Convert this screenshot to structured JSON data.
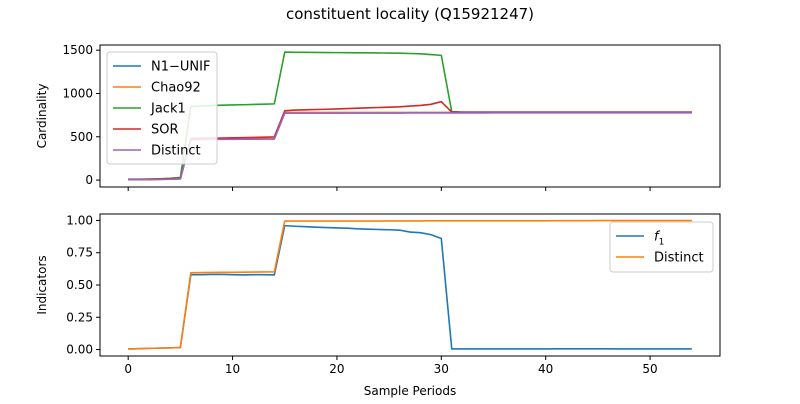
{
  "figure": {
    "title": "constituent locality (Q15921247)"
  },
  "chart_data": [
    {
      "type": "line",
      "xlabel": "",
      "ylabel": "Cardinality",
      "xlim": [
        -2.7,
        56.7
      ],
      "ylim": [
        -80,
        1560
      ],
      "xticks": [
        0,
        10,
        20,
        30,
        40,
        50
      ],
      "xticks_labeled": false,
      "yticks": [
        0,
        500,
        1000,
        1500
      ],
      "grid": false,
      "legend": "upper left",
      "x": [
        0,
        1,
        2,
        3,
        4,
        5,
        6,
        7,
        8,
        9,
        10,
        11,
        12,
        13,
        14,
        15,
        16,
        17,
        18,
        19,
        20,
        21,
        22,
        23,
        24,
        25,
        26,
        27,
        28,
        29,
        30,
        31,
        32,
        33,
        34,
        35,
        36,
        37,
        38,
        39,
        40,
        41,
        42,
        43,
        44,
        45,
        46,
        47,
        48,
        49,
        50,
        51,
        52,
        53,
        54
      ],
      "series": [
        {
          "name": "N1−UNIF",
          "color": "#1f77b4",
          "values": [
            5,
            5,
            6,
            8,
            10,
            15,
            470,
            470,
            472,
            472,
            473,
            474,
            474,
            475,
            475,
            775,
            775,
            776,
            776,
            776,
            776,
            777,
            777,
            777,
            777,
            777,
            777,
            778,
            778,
            778,
            778,
            778,
            778,
            778,
            778,
            779,
            779,
            779,
            779,
            779,
            779,
            779,
            779,
            779,
            779,
            779,
            779,
            779,
            779,
            779,
            779,
            779,
            779,
            779,
            779
          ]
        },
        {
          "name": "Chao92",
          "color": "#ff7f0e",
          "values": [
            5,
            5,
            6,
            8,
            10,
            15,
            475,
            475,
            477,
            477,
            478,
            478,
            478,
            479,
            479,
            780,
            780,
            781,
            781,
            781,
            781,
            781,
            781,
            781,
            781,
            781,
            781,
            781,
            781,
            781,
            781,
            781,
            781,
            781,
            781,
            781,
            781,
            781,
            781,
            781,
            781,
            781,
            781,
            781,
            781,
            781,
            781,
            781,
            781,
            781,
            781,
            781,
            781,
            781,
            781
          ]
        },
        {
          "name": "Jack1",
          "color": "#2ca02c",
          "values": [
            10,
            10,
            12,
            15,
            20,
            30,
            850,
            855,
            860,
            865,
            868,
            870,
            873,
            876,
            880,
            1478,
            1476,
            1475,
            1474,
            1473,
            1472,
            1471,
            1470,
            1470,
            1468,
            1467,
            1466,
            1462,
            1458,
            1450,
            1440,
            790,
            785,
            785,
            785,
            785,
            785,
            785,
            785,
            785,
            785,
            785,
            785,
            785,
            785,
            785,
            785,
            785,
            785,
            785,
            785,
            785,
            785,
            785,
            785
          ]
        },
        {
          "name": "SOR",
          "color": "#d62728",
          "values": [
            8,
            8,
            10,
            12,
            16,
            20,
            480,
            482,
            484,
            486,
            488,
            490,
            492,
            495,
            498,
            800,
            808,
            812,
            815,
            818,
            822,
            826,
            830,
            834,
            838,
            842,
            846,
            855,
            862,
            875,
            905,
            785,
            782,
            782,
            782,
            782,
            782,
            782,
            782,
            782,
            782,
            782,
            782,
            782,
            782,
            782,
            782,
            782,
            782,
            782,
            782,
            782,
            782,
            782,
            782
          ]
        },
        {
          "name": "Distinct",
          "color": "#9467bd",
          "values": [
            5,
            5,
            6,
            8,
            10,
            15,
            468,
            468,
            470,
            470,
            471,
            472,
            472,
            473,
            473,
            772,
            772,
            773,
            773,
            773,
            773,
            774,
            774,
            774,
            774,
            774,
            774,
            775,
            775,
            775,
            775,
            775,
            775,
            775,
            775,
            776,
            776,
            776,
            776,
            776,
            776,
            776,
            776,
            776,
            776,
            776,
            776,
            776,
            776,
            776,
            776,
            776,
            776,
            776,
            776
          ]
        }
      ]
    },
    {
      "type": "line",
      "xlabel": "Sample Periods",
      "ylabel": "Indicators",
      "xlim": [
        -2.7,
        56.7
      ],
      "ylim": [
        -0.05,
        1.05
      ],
      "xticks": [
        0,
        10,
        20,
        30,
        40,
        50
      ],
      "xticks_labeled": true,
      "yticks": [
        0.0,
        0.25,
        0.5,
        0.75,
        1.0
      ],
      "ytick_labels": [
        "0.00",
        "0.25",
        "0.50",
        "0.75",
        "1.00"
      ],
      "grid": false,
      "legend": "upper right",
      "x": [
        0,
        1,
        2,
        3,
        4,
        5,
        6,
        7,
        8,
        9,
        10,
        11,
        12,
        13,
        14,
        15,
        16,
        17,
        18,
        19,
        20,
        21,
        22,
        23,
        24,
        25,
        26,
        27,
        28,
        29,
        30,
        31,
        32,
        33,
        34,
        35,
        36,
        37,
        38,
        39,
        40,
        41,
        42,
        43,
        44,
        45,
        46,
        47,
        48,
        49,
        50,
        51,
        52,
        53,
        54
      ],
      "series": [
        {
          "name": "f",
          "name_subscript": "1",
          "color": "#1f77b4",
          "values": [
            0.005,
            0.007,
            0.009,
            0.011,
            0.013,
            0.015,
            0.58,
            0.58,
            0.582,
            0.582,
            0.58,
            0.578,
            0.58,
            0.58,
            0.578,
            0.96,
            0.955,
            0.952,
            0.948,
            0.945,
            0.942,
            0.94,
            0.935,
            0.932,
            0.93,
            0.928,
            0.925,
            0.91,
            0.905,
            0.89,
            0.86,
            0.005,
            0.005,
            0.005,
            0.005,
            0.005,
            0.005,
            0.005,
            0.005,
            0.005,
            0.005,
            0.006,
            0.006,
            0.006,
            0.006,
            0.006,
            0.006,
            0.005,
            0.005,
            0.005,
            0.005,
            0.005,
            0.005,
            0.005,
            0.005
          ]
        },
        {
          "name": "Distinct",
          "color": "#ff7f0e",
          "values": [
            0.005,
            0.007,
            0.009,
            0.011,
            0.013,
            0.015,
            0.595,
            0.596,
            0.597,
            0.598,
            0.598,
            0.599,
            0.6,
            0.601,
            0.602,
            0.995,
            0.995,
            0.995,
            0.995,
            0.995,
            0.995,
            0.995,
            0.995,
            0.995,
            0.995,
            0.996,
            0.996,
            0.996,
            0.996,
            0.997,
            0.997,
            0.997,
            0.997,
            0.997,
            0.997,
            0.997,
            0.997,
            0.997,
            0.997,
            0.997,
            0.997,
            0.998,
            0.998,
            0.998,
            0.998,
            0.999,
            0.999,
            0.999,
            0.999,
            0.999,
            0.999,
            0.999,
            0.999,
            0.999,
            0.999
          ]
        }
      ]
    }
  ]
}
